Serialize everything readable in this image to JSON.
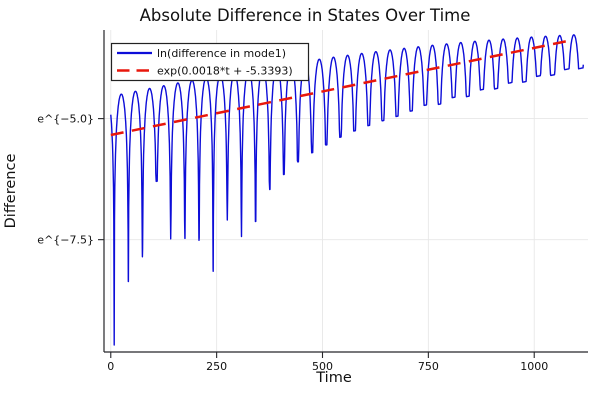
{
  "chart_data": {
    "type": "line",
    "title": "Absolute Difference in States Over Time",
    "xlabel": "Time",
    "ylabel": "Difference",
    "xlim": [
      -16,
      1127
    ],
    "ylim_ln_scale": [
      -9.82,
      -3.17
    ],
    "x_ticks": [
      {
        "value": 0,
        "label": "0"
      },
      {
        "value": 250,
        "label": "250"
      },
      {
        "value": 500,
        "label": "500"
      },
      {
        "value": 750,
        "label": "750"
      },
      {
        "value": 1000,
        "label": "1000"
      }
    ],
    "y_ticks": [
      {
        "value": -5.0,
        "label": "e^{−5.0}"
      },
      {
        "value": -7.5,
        "label": "e^{−7.5}"
      }
    ],
    "grid": true,
    "legend_position": "top-left",
    "colors": {
      "grid": "#e7e7e7",
      "axis": "#26262a",
      "background": "#ffffff",
      "text": "#111111"
    },
    "series": [
      {
        "name": "ln(difference in mode1)",
        "color": "#0d0dd8",
        "line_style": "solid",
        "line_width": 1.4,
        "model": {
          "kind": "ln_abs_beat_oscillation",
          "t_start": 0,
          "t_end": 1116,
          "dt": 0.8,
          "trend_slope": 0.0018,
          "trend_intercept": -5.3393,
          "period": 33.4,
          "first_zero_t": 8,
          "upper_envelope_gap": {
            "base": 0.8,
            "coef": 0.68,
            "t_scale": 1080,
            "power": 2.2,
            "min": 0.1
          },
          "spike_depths_below_trend": [
            4.35,
            3.1,
            2.65,
            1.15,
            2.4,
            2.45,
            2.55,
            3.25,
            2.25,
            2.65,
            2.4,
            1.8,
            1.55,
            1.35,
            1.22,
            1.12,
            1.02,
            0.95,
            0.9,
            0.86,
            0.83,
            0.78,
            0.72,
            0.76,
            0.68,
            0.72,
            0.64,
            0.68,
            0.62,
            0.66,
            0.6,
            0.64,
            0.58,
            0.62
          ]
        }
      },
      {
        "name": "exp(0.0018*t + -5.3393)",
        "color": "#e8170c",
        "line_style": "dashed",
        "line_width": 2.5,
        "dash": [
          13,
          8.5
        ],
        "model": {
          "kind": "linear_in_ln",
          "slope": 0.0018,
          "intercept": -5.3393,
          "t_start": 0,
          "t_end": 1085
        }
      }
    ]
  }
}
